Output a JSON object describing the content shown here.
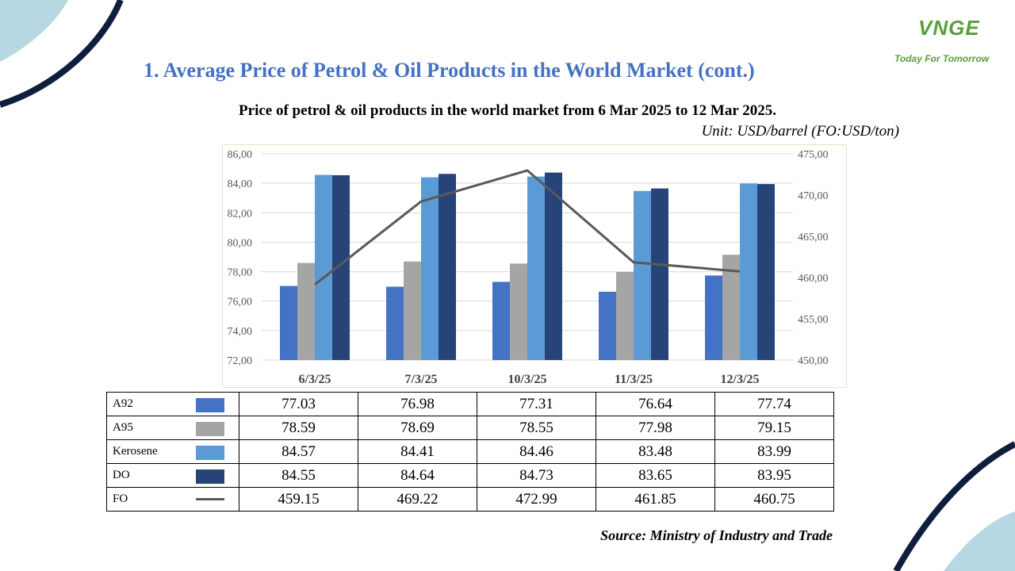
{
  "header": {
    "title": "1. Average Price of Petrol & Oil Products in the World Market (cont.)",
    "logo_text": "VNGE",
    "logo_tagline": "Today For Tomorrow"
  },
  "chart_title": "Price of petrol & oil products in the world market from 6 Mar 2025 to 12 Mar 2025.",
  "unit_label": "Unit: USD/barrel (FO:USD/ton)",
  "source": "Source: Ministry of Industry and Trade",
  "colors": {
    "A92": "#4472c4",
    "A95": "#a5a5a5",
    "Kerosene": "#5b9bd5",
    "DO": "#264478",
    "FO": "#595959",
    "title": "#4472c4",
    "logo": "#5a9e3a",
    "decor_dark": "#0f1e3c",
    "decor_light": "#b7d7e3"
  },
  "chart_data": {
    "type": "bar",
    "title": "Price of petrol & oil products in the world market from 6 Mar 2025 to 12 Mar 2025.",
    "categories": [
      "6/3/25",
      "7/3/25",
      "10/3/25",
      "11/3/25",
      "12/3/25"
    ],
    "series": [
      {
        "name": "A92",
        "type": "bar",
        "axis": "left",
        "values": [
          77.03,
          76.98,
          77.31,
          76.64,
          77.74
        ],
        "display": [
          "77.03",
          "76.98",
          "77.31",
          "76.64",
          "77.74"
        ]
      },
      {
        "name": "A95",
        "type": "bar",
        "axis": "left",
        "values": [
          78.59,
          78.69,
          78.55,
          77.98,
          79.15
        ],
        "display": [
          "78.59",
          "78.69",
          "78.55",
          "77.98",
          "79.15"
        ]
      },
      {
        "name": "Kerosene",
        "type": "bar",
        "axis": "left",
        "values": [
          84.57,
          84.41,
          84.46,
          83.48,
          83.99
        ],
        "display": [
          "84.57",
          "84.41",
          "84.46",
          "83.48",
          "83.99"
        ]
      },
      {
        "name": "DO",
        "type": "bar",
        "axis": "left",
        "values": [
          84.55,
          84.64,
          84.73,
          83.65,
          83.95
        ],
        "display": [
          "84.55",
          "84.64",
          "84.73",
          "83.65",
          "83.95"
        ]
      },
      {
        "name": "FO",
        "type": "line",
        "axis": "right",
        "values": [
          459.15,
          469.22,
          472.99,
          461.85,
          460.75
        ],
        "display": [
          "459.15",
          "469.22",
          "472.99",
          "461.85",
          "460.75"
        ]
      }
    ],
    "y_left": {
      "min": 72,
      "max": 86,
      "step": 2,
      "ticks": [
        "72,00",
        "74,00",
        "76,00",
        "78,00",
        "80,00",
        "82,00",
        "84,00",
        "86,00"
      ]
    },
    "y_right": {
      "min": 450,
      "max": 475,
      "step": 5,
      "ticks": [
        "450,00",
        "455,00",
        "460,00",
        "465,00",
        "470,00",
        "475,00"
      ]
    },
    "grid": true,
    "legend": "data table below chart"
  }
}
